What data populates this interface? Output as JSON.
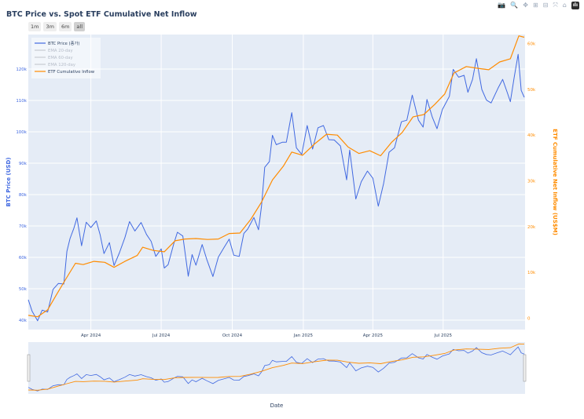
{
  "title": "BTC Price vs. Spot ETF Cumulative Net Inflow",
  "range_buttons": [
    {
      "label": "1m",
      "active": false
    },
    {
      "label": "3m",
      "active": false
    },
    {
      "label": "6m",
      "active": false
    },
    {
      "label": "all",
      "active": true
    }
  ],
  "modebar": [
    {
      "name": "camera-icon",
      "glyph": "📷"
    },
    {
      "name": "zoom-icon",
      "glyph": "🔍"
    },
    {
      "name": "pan-icon",
      "glyph": "✥"
    },
    {
      "name": "zoom-in-icon",
      "glyph": "⊞"
    },
    {
      "name": "zoom-out-icon",
      "glyph": "⊟"
    },
    {
      "name": "autoscale-icon",
      "glyph": "⤧"
    },
    {
      "name": "reset-axes-icon",
      "glyph": "⌂"
    },
    {
      "name": "plotly-logo-icon",
      "glyph": "ılı"
    }
  ],
  "colors": {
    "plot_bg": "#e5ecf6",
    "grid": "#ffffff",
    "btc": "#4169e1",
    "etf": "#ff8c00",
    "axis_text": "#2a3f5f",
    "ema": "#c7cbd2"
  },
  "chart_data": {
    "type": "line",
    "title": "BTC Price vs. Spot ETF Cumulative Net Inflow",
    "xlabel": "Date",
    "ylabel": "BTC Price (USD)",
    "y2label": "ETF Cumulative Net Inflow (US$M)",
    "xrange": [
      "2024-01-11",
      "2025-10-15"
    ],
    "ylim": [
      37000,
      131000
    ],
    "y2lim": [
      -2500,
      62000
    ],
    "x_ticks": [
      {
        "date": "2024-04-01",
        "label": "Apr 2024"
      },
      {
        "date": "2024-07-01",
        "label": "Jul 2024"
      },
      {
        "date": "2024-10-01",
        "label": "Oct 2024"
      },
      {
        "date": "2025-01-01",
        "label": "Jan 2025"
      },
      {
        "date": "2025-04-01",
        "label": "Apr 2025"
      },
      {
        "date": "2025-07-01",
        "label": "Jul 2025"
      }
    ],
    "y_ticks": [
      {
        "value": 40000,
        "label": "40k"
      },
      {
        "value": 50000,
        "label": "50k"
      },
      {
        "value": 60000,
        "label": "60k"
      },
      {
        "value": 70000,
        "label": "70k"
      },
      {
        "value": 80000,
        "label": "80k"
      },
      {
        "value": 90000,
        "label": "90k"
      },
      {
        "value": 100000,
        "label": "100k"
      },
      {
        "value": 110000,
        "label": "110k"
      },
      {
        "value": 120000,
        "label": "120k"
      }
    ],
    "y2_ticks": [
      {
        "value": 0,
        "label": "0"
      },
      {
        "value": 10000,
        "label": "10k"
      },
      {
        "value": 20000,
        "label": "20k"
      },
      {
        "value": 30000,
        "label": "30k"
      },
      {
        "value": 40000,
        "label": "40k"
      },
      {
        "value": 50000,
        "label": "50k"
      },
      {
        "value": 60000,
        "label": "60k"
      }
    ],
    "legend": {
      "position": "top-left",
      "entries": [
        {
          "label": "BTC Price (종가)",
          "key": "btc",
          "visible": true
        },
        {
          "label": "EMA 20-day",
          "key": "ema",
          "visible": false
        },
        {
          "label": "EMA 60-day",
          "key": "ema",
          "visible": false
        },
        {
          "label": "EMA 120-day",
          "key": "ema",
          "visible": false
        },
        {
          "label": "ETF Cumulative Inflow",
          "key": "etf",
          "visible": true
        }
      ]
    },
    "grid": true,
    "series": [
      {
        "name": "BTC Price (종가)",
        "axis": "y",
        "points": [
          [
            "2024-01-11",
            46500
          ],
          [
            "2024-01-16",
            42800
          ],
          [
            "2024-01-23",
            39800
          ],
          [
            "2024-01-29",
            43200
          ],
          [
            "2024-02-05",
            42600
          ],
          [
            "2024-02-12",
            49800
          ],
          [
            "2024-02-19",
            51700
          ],
          [
            "2024-02-26",
            51500
          ],
          [
            "2024-03-01",
            61900
          ],
          [
            "2024-03-05",
            66000
          ],
          [
            "2024-03-10",
            69300
          ],
          [
            "2024-03-14",
            72600
          ],
          [
            "2024-03-20",
            63700
          ],
          [
            "2024-03-26",
            71200
          ],
          [
            "2024-04-01",
            69500
          ],
          [
            "2024-04-08",
            71600
          ],
          [
            "2024-04-13",
            67200
          ],
          [
            "2024-04-18",
            61200
          ],
          [
            "2024-04-25",
            64700
          ],
          [
            "2024-05-01",
            57400
          ],
          [
            "2024-05-08",
            61500
          ],
          [
            "2024-05-15",
            66300
          ],
          [
            "2024-05-21",
            71400
          ],
          [
            "2024-05-28",
            68400
          ],
          [
            "2024-06-05",
            71100
          ],
          [
            "2024-06-12",
            67300
          ],
          [
            "2024-06-18",
            65100
          ],
          [
            "2024-06-24",
            60300
          ],
          [
            "2024-07-01",
            62700
          ],
          [
            "2024-07-05",
            56600
          ],
          [
            "2024-07-10",
            57700
          ],
          [
            "2024-07-17",
            64100
          ],
          [
            "2024-07-22",
            68000
          ],
          [
            "2024-07-29",
            66800
          ],
          [
            "2024-08-05",
            54000
          ],
          [
            "2024-08-10",
            60900
          ],
          [
            "2024-08-15",
            57500
          ],
          [
            "2024-08-23",
            64100
          ],
          [
            "2024-08-29",
            59400
          ],
          [
            "2024-09-06",
            53900
          ],
          [
            "2024-09-13",
            60100
          ],
          [
            "2024-09-20",
            63000
          ],
          [
            "2024-09-27",
            65800
          ],
          [
            "2024-10-03",
            60700
          ],
          [
            "2024-10-10",
            60300
          ],
          [
            "2024-10-16",
            67600
          ],
          [
            "2024-10-21",
            69000
          ],
          [
            "2024-10-29",
            72700
          ],
          [
            "2024-11-04",
            68800
          ],
          [
            "2024-11-08",
            76500
          ],
          [
            "2024-11-12",
            88700
          ],
          [
            "2024-11-18",
            90500
          ],
          [
            "2024-11-22",
            98900
          ],
          [
            "2024-11-27",
            95900
          ],
          [
            "2024-12-05",
            96700
          ],
          [
            "2024-12-10",
            96700
          ],
          [
            "2024-12-17",
            106100
          ],
          [
            "2024-12-23",
            94900
          ],
          [
            "2024-12-30",
            92800
          ],
          [
            "2025-01-06",
            102000
          ],
          [
            "2025-01-13",
            94500
          ],
          [
            "2025-01-20",
            101300
          ],
          [
            "2025-01-27",
            102000
          ],
          [
            "2025-02-03",
            97500
          ],
          [
            "2025-02-10",
            97400
          ],
          [
            "2025-02-18",
            95500
          ],
          [
            "2025-02-26",
            84700
          ],
          [
            "2025-03-02",
            94200
          ],
          [
            "2025-03-10",
            78600
          ],
          [
            "2025-03-17",
            84100
          ],
          [
            "2025-03-25",
            87500
          ],
          [
            "2025-04-01",
            85200
          ],
          [
            "2025-04-08",
            76300
          ],
          [
            "2025-04-15",
            83600
          ],
          [
            "2025-04-22",
            93500
          ],
          [
            "2025-04-29",
            94900
          ],
          [
            "2025-05-08",
            103200
          ],
          [
            "2025-05-15",
            103700
          ],
          [
            "2025-05-22",
            111700
          ],
          [
            "2025-05-30",
            103700
          ],
          [
            "2025-06-05",
            101500
          ],
          [
            "2025-06-10",
            110300
          ],
          [
            "2025-06-17",
            104600
          ],
          [
            "2025-06-23",
            101000
          ],
          [
            "2025-06-30",
            107100
          ],
          [
            "2025-07-09",
            111300
          ],
          [
            "2025-07-14",
            119900
          ],
          [
            "2025-07-21",
            117400
          ],
          [
            "2025-07-28",
            118000
          ],
          [
            "2025-08-02",
            112600
          ],
          [
            "2025-08-08",
            116700
          ],
          [
            "2025-08-13",
            123300
          ],
          [
            "2025-08-20",
            113500
          ],
          [
            "2025-08-26",
            110100
          ],
          [
            "2025-09-01",
            109200
          ],
          [
            "2025-09-10",
            113900
          ],
          [
            "2025-09-16",
            116700
          ],
          [
            "2025-09-22",
            112500
          ],
          [
            "2025-09-26",
            109600
          ],
          [
            "2025-10-01",
            117400
          ],
          [
            "2025-10-06",
            124700
          ],
          [
            "2025-10-10",
            113200
          ],
          [
            "2025-10-14",
            111000
          ]
        ]
      },
      {
        "name": "ETF Cumulative Inflow",
        "axis": "y2",
        "points": [
          [
            "2024-01-11",
            600
          ],
          [
            "2024-01-23",
            300
          ],
          [
            "2024-02-05",
            1800
          ],
          [
            "2024-02-16",
            5000
          ],
          [
            "2024-02-28",
            8400
          ],
          [
            "2024-03-12",
            12000
          ],
          [
            "2024-03-22",
            11700
          ],
          [
            "2024-04-05",
            12400
          ],
          [
            "2024-04-19",
            12200
          ],
          [
            "2024-05-01",
            11100
          ],
          [
            "2024-05-15",
            12400
          ],
          [
            "2024-05-31",
            13700
          ],
          [
            "2024-06-07",
            15500
          ],
          [
            "2024-06-21",
            14800
          ],
          [
            "2024-07-05",
            14500
          ],
          [
            "2024-07-19",
            16900
          ],
          [
            "2024-08-01",
            17300
          ],
          [
            "2024-08-15",
            17400
          ],
          [
            "2024-08-30",
            17200
          ],
          [
            "2024-09-13",
            17300
          ],
          [
            "2024-09-27",
            18500
          ],
          [
            "2024-10-11",
            18600
          ],
          [
            "2024-10-25",
            21600
          ],
          [
            "2024-11-08",
            25400
          ],
          [
            "2024-11-22",
            30200
          ],
          [
            "2024-12-06",
            33200
          ],
          [
            "2024-12-17",
            36300
          ],
          [
            "2024-12-31",
            35600
          ],
          [
            "2025-01-15",
            38000
          ],
          [
            "2025-01-31",
            40200
          ],
          [
            "2025-02-14",
            40000
          ],
          [
            "2025-02-28",
            37400
          ],
          [
            "2025-03-14",
            36000
          ],
          [
            "2025-03-28",
            36600
          ],
          [
            "2025-04-11",
            35500
          ],
          [
            "2025-04-25",
            38400
          ],
          [
            "2025-05-09",
            40600
          ],
          [
            "2025-05-23",
            44000
          ],
          [
            "2025-06-06",
            44500
          ],
          [
            "2025-06-20",
            46700
          ],
          [
            "2025-07-03",
            49000
          ],
          [
            "2025-07-15",
            53600
          ],
          [
            "2025-07-31",
            55000
          ],
          [
            "2025-08-15",
            54600
          ],
          [
            "2025-08-29",
            54300
          ],
          [
            "2025-09-12",
            56000
          ],
          [
            "2025-09-26",
            56700
          ],
          [
            "2025-10-07",
            61700
          ],
          [
            "2025-10-14",
            61400
          ]
        ]
      }
    ],
    "rangeslider": {
      "visible": true
    }
  }
}
